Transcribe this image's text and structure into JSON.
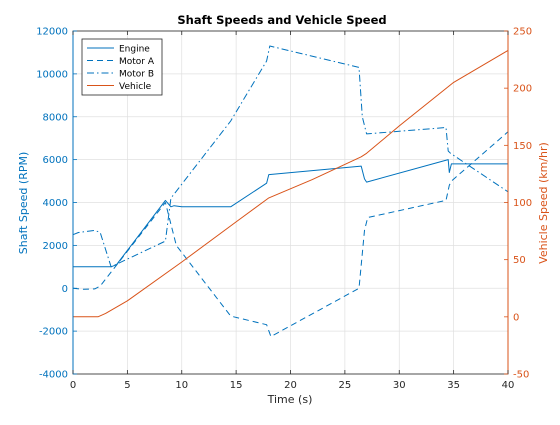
{
  "chart_data": {
    "type": "line",
    "title": "Shaft Speeds and Vehicle Speed",
    "xlabel": "Time (s)",
    "ylabel_left": "Shaft Speed (RPM)",
    "ylabel_right": "Vehicle Speed (km/hr)",
    "xlim": [
      0,
      40
    ],
    "ylim_left": [
      -4000,
      12000
    ],
    "ylim_right": [
      -50,
      250
    ],
    "x_ticks": [
      0,
      5,
      10,
      15,
      20,
      25,
      30,
      35,
      40
    ],
    "y_left_ticks": [
      -4000,
      -2000,
      0,
      2000,
      4000,
      6000,
      8000,
      10000,
      12000
    ],
    "y_right_ticks": [
      -50,
      0,
      50,
      100,
      150,
      200,
      250
    ],
    "grid": true,
    "legend_position": "top-left",
    "colors": {
      "left_axis": "#0072bd",
      "right_axis": "#d95319",
      "text": "#262626",
      "grid": "#e0e0e0"
    },
    "series": [
      {
        "name": "Engine",
        "axis": "left",
        "style": "solid",
        "color": "#0072bd",
        "x": [
          0,
          2,
          3.5,
          4,
          8.5,
          9,
          9.3,
          10,
          14.5,
          17.8,
          18,
          26.5,
          26.8,
          27,
          34.5,
          34.6,
          34.8,
          40
        ],
        "y": [
          1000,
          1000,
          1000,
          1100,
          4100,
          3800,
          3850,
          3800,
          3800,
          4900,
          5300,
          5700,
          5100,
          4950,
          6000,
          5400,
          5800,
          5800
        ]
      },
      {
        "name": "Motor A",
        "axis": "left",
        "style": "dashed",
        "color": "#0072bd",
        "x": [
          0,
          1,
          2,
          2.5,
          8.5,
          9.5,
          14.5,
          17.8,
          18.2,
          26.3,
          26.8,
          27.1,
          34.3,
          34.6,
          34.8,
          40
        ],
        "y": [
          0,
          -50,
          -30,
          100,
          4000,
          2000,
          -1300,
          -1700,
          -2250,
          0,
          2700,
          3300,
          4100,
          4800,
          5000,
          7300
        ]
      },
      {
        "name": "Motor B",
        "axis": "left",
        "style": "dashdot",
        "color": "#0072bd",
        "x": [
          0,
          0.5,
          2,
          2.5,
          3.5,
          8.5,
          9,
          14.5,
          17.8,
          18.1,
          26.3,
          26.6,
          27,
          34.3,
          34.5,
          34.7,
          40
        ],
        "y": [
          2500,
          2600,
          2700,
          2600,
          1000,
          2200,
          4200,
          7800,
          10600,
          11300,
          10300,
          8000,
          7200,
          7500,
          6400,
          6300,
          4500
        ]
      },
      {
        "name": "Vehicle",
        "axis": "right",
        "style": "solid",
        "color": "#d95319",
        "x": [
          0,
          1,
          2.3,
          3,
          5,
          10,
          15,
          18,
          22,
          26.5,
          27,
          30,
          35,
          40
        ],
        "y": [
          0,
          0,
          0,
          3,
          14,
          48,
          83,
          104,
          120,
          140,
          143,
          167,
          205,
          233
        ]
      }
    ]
  }
}
